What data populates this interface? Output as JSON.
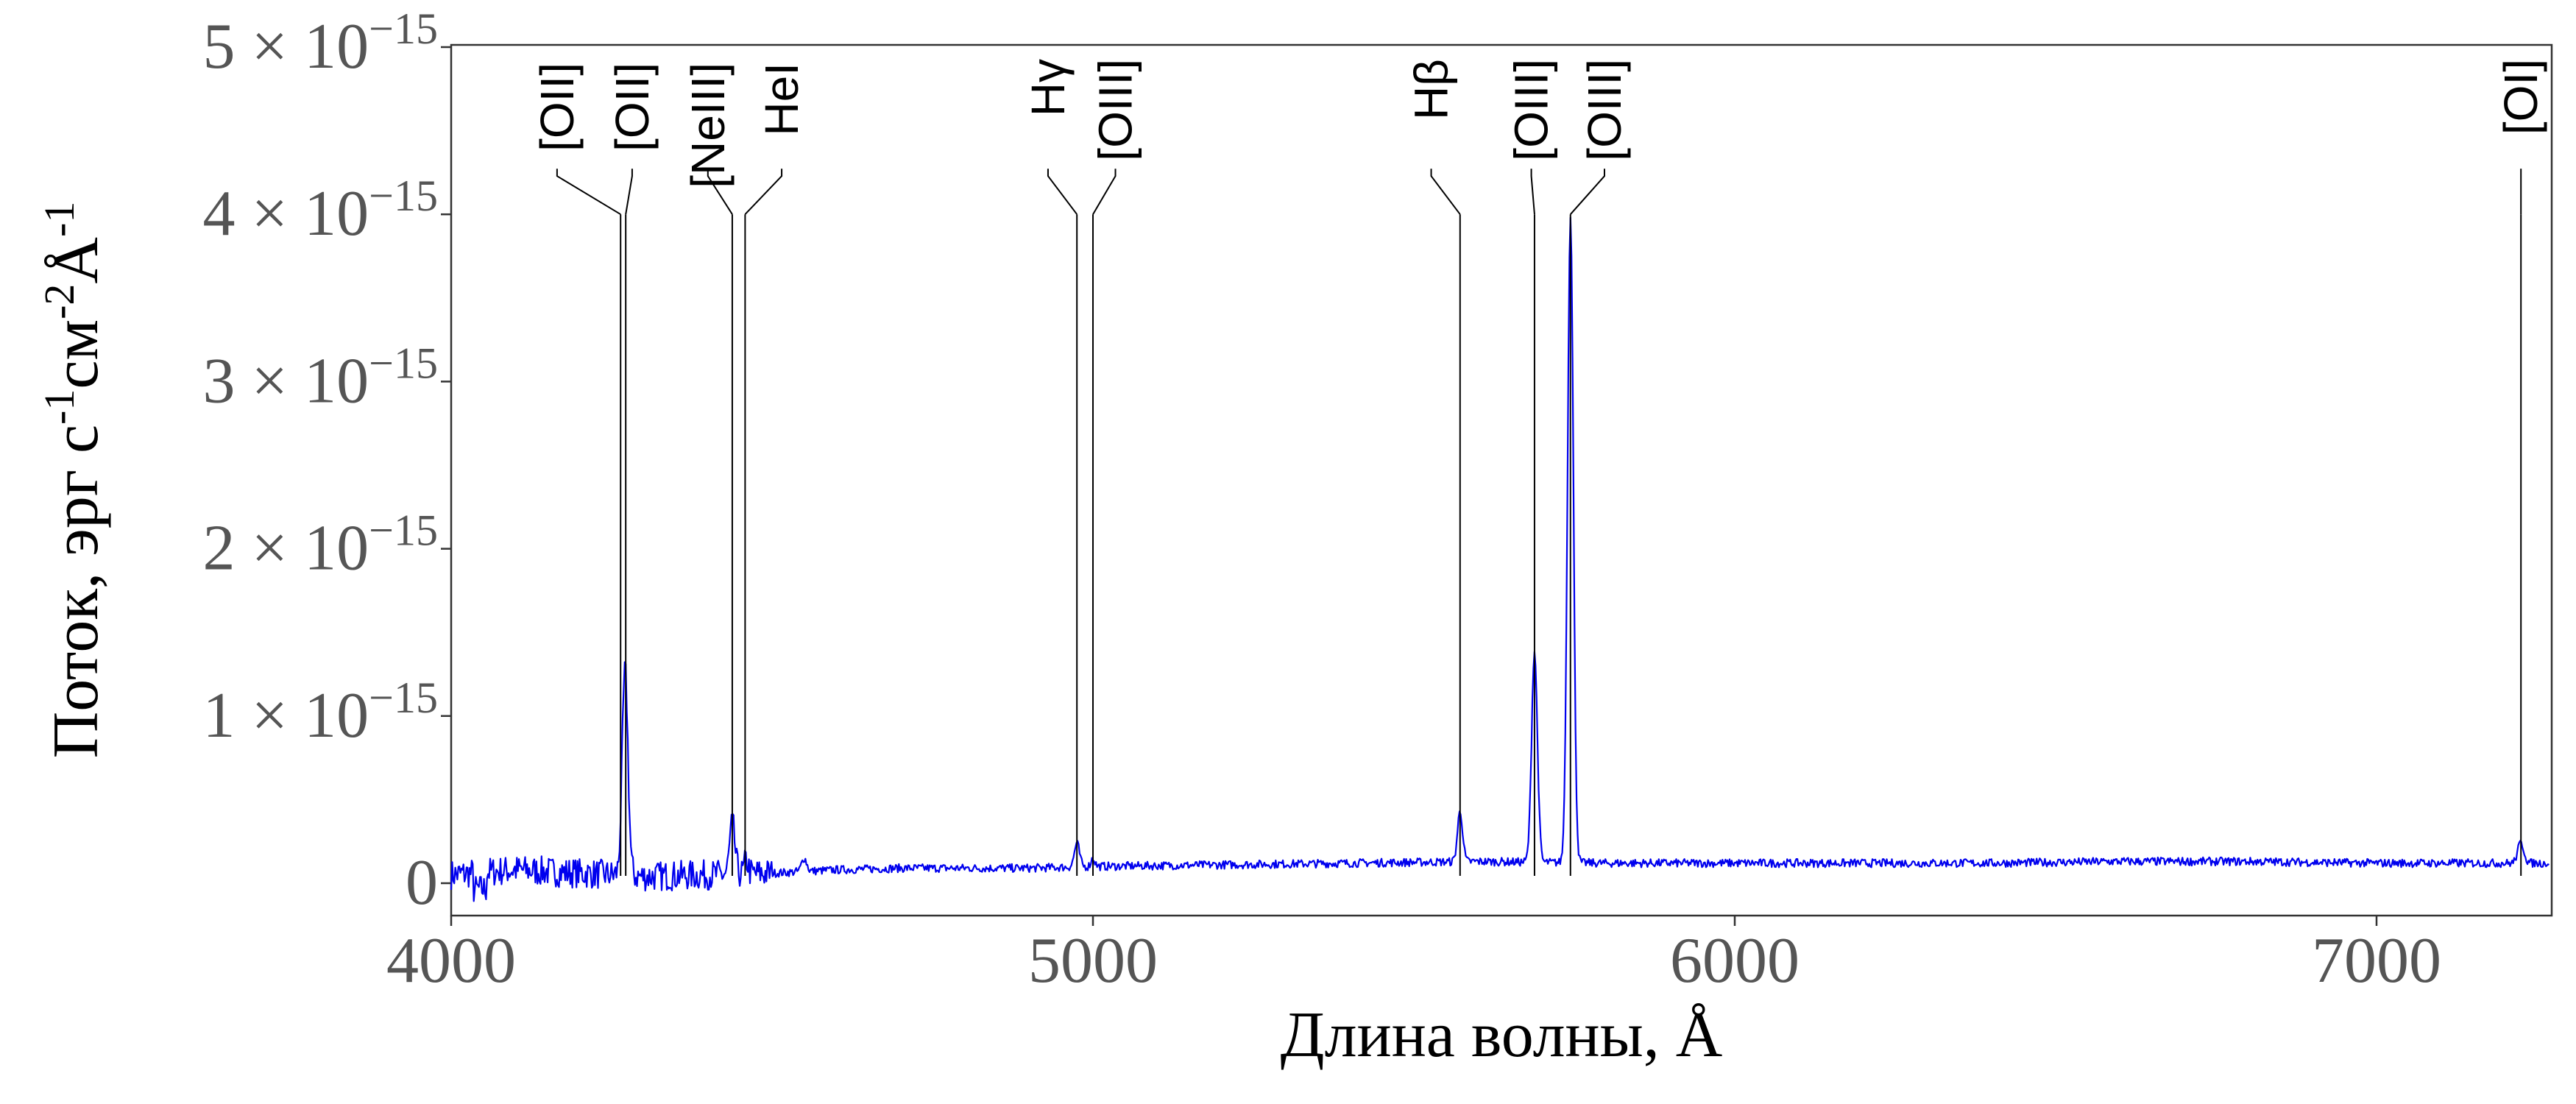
{
  "chart_data": {
    "type": "line",
    "xlabel": "Длина волны, Å",
    "ylabel": {
      "base": "Поток, эрг с",
      "sup1": "-1",
      "mid": "см",
      "sup2": "-2",
      "end": "Å",
      "sup3": "-1"
    },
    "xlim": [
      4000,
      7270
    ],
    "ylim": [
      -0.2,
      5.0
    ],
    "y_scale_note": "×10^-15",
    "x_ticks": [
      {
        "value": 4000,
        "label": "4000"
      },
      {
        "value": 5000,
        "label": "5000"
      },
      {
        "value": 6000,
        "label": "6000"
      },
      {
        "value": 7000,
        "label": "7000"
      }
    ],
    "y_ticks": [
      {
        "value": 0,
        "label": "0"
      },
      {
        "value": 1,
        "label": "1 × 10",
        "exp": "−15"
      },
      {
        "value": 2,
        "label": "2 × 10",
        "exp": "−15"
      },
      {
        "value": 3,
        "label": "3 × 10",
        "exp": "−15"
      },
      {
        "value": 4,
        "label": "4 × 10",
        "exp": "−15"
      },
      {
        "value": 5,
        "label": "5 × 10",
        "exp": "−15"
      }
    ],
    "series_color": "#0000ee",
    "continuum": [
      [
        4000,
        0.05
      ],
      [
        4100,
        0.08
      ],
      [
        4200,
        0.06
      ],
      [
        4300,
        0.04
      ],
      [
        4400,
        0.05
      ],
      [
        4500,
        0.06
      ],
      [
        4600,
        0.08
      ],
      [
        4700,
        0.09
      ],
      [
        4800,
        0.09
      ],
      [
        4900,
        0.09
      ],
      [
        5000,
        0.1
      ],
      [
        5200,
        0.11
      ],
      [
        5400,
        0.12
      ],
      [
        5600,
        0.13
      ],
      [
        5800,
        0.12
      ],
      [
        6000,
        0.12
      ],
      [
        6200,
        0.12
      ],
      [
        6400,
        0.12
      ],
      [
        6600,
        0.13
      ],
      [
        6800,
        0.13
      ],
      [
        7000,
        0.12
      ],
      [
        7270,
        0.12
      ]
    ],
    "emission_peaks": [
      {
        "x": 4271,
        "amp": 1.22,
        "sigma": 4.5
      },
      {
        "x": 4438,
        "amp": 0.3,
        "sigma": 4.0
      },
      {
        "x": 4460,
        "amp": 0.08,
        "sigma": 3.0
      },
      {
        "x": 4550,
        "amp": 0.08,
        "sigma": 4.0
      },
      {
        "x": 4975,
        "amp": 0.14,
        "sigma": 4.0
      },
      {
        "x": 5000,
        "amp": 0.05,
        "sigma": 3.0
      },
      {
        "x": 5572,
        "amp": 0.3,
        "sigma": 4.0
      },
      {
        "x": 5688,
        "amp": 1.26,
        "sigma": 4.5
      },
      {
        "x": 5744,
        "amp": 3.88,
        "sigma": 4.5
      },
      {
        "x": 7225,
        "amp": 0.12,
        "sigma": 5.0
      }
    ],
    "line_annotations": [
      {
        "label": "[OII]",
        "x_line": 4264,
        "x_text": 4165,
        "text_top": 85
      },
      {
        "label": "[OII]",
        "x_line": 4272,
        "x_text": 4282,
        "text_top": 85
      },
      {
        "label": "[NeIII]",
        "x_line": 4438,
        "x_text": 4400,
        "text_top": 85
      },
      {
        "label": "HeI",
        "x_line": 4458,
        "x_text": 4515,
        "text_top": 85
      },
      {
        "label": "Hγ",
        "x_line": 4975,
        "x_text": 4930,
        "text_top": 80
      },
      {
        "label": "[OIII]",
        "x_line": 5000,
        "x_text": 5035,
        "text_top": 80
      },
      {
        "label": "Hβ",
        "x_line": 5572,
        "x_text": 5527,
        "text_top": 80
      },
      {
        "label": "[OIII]",
        "x_line": 5688,
        "x_text": 5683,
        "text_top": 80
      },
      {
        "label": "[OIII]",
        "x_line": 5744,
        "x_text": 5797,
        "text_top": 80
      },
      {
        "label": "[OI]",
        "x_line": 7225,
        "x_text": 7225,
        "text_top": 80
      }
    ]
  }
}
